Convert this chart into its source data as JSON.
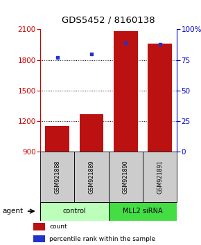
{
  "title": "GDS5452 / 8160138",
  "samples": [
    "GSM921888",
    "GSM921889",
    "GSM921890",
    "GSM921891"
  ],
  "counts": [
    1155,
    1270,
    2085,
    1960
  ],
  "percentile_ranks": [
    77,
    80,
    89,
    88
  ],
  "ylim_left": [
    900,
    2100
  ],
  "ylim_right": [
    0,
    100
  ],
  "yticks_left": [
    900,
    1200,
    1500,
    1800,
    2100
  ],
  "yticks_right": [
    0,
    25,
    50,
    75,
    100
  ],
  "bar_color": "#bb1111",
  "dot_color": "#2233cc",
  "bar_width": 0.7,
  "groups": [
    {
      "label": "control",
      "color": "#bbffbb"
    },
    {
      "label": "MLL2 siRNA",
      "color": "#44dd44"
    }
  ],
  "left_axis_color": "#cc0000",
  "right_axis_color": "#0000cc",
  "sample_box_color": "#cccccc",
  "grid_yticks": [
    1200,
    1500,
    1800
  ]
}
